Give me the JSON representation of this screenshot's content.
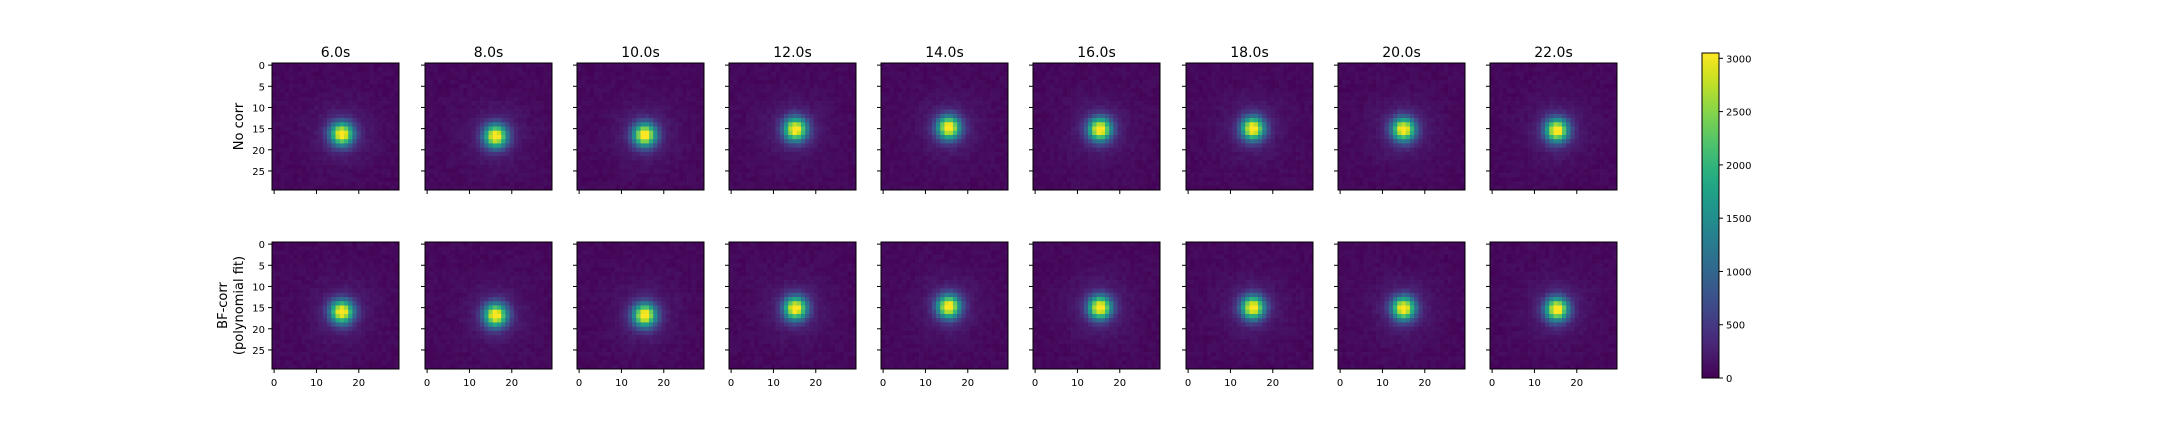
{
  "chart_data": {
    "type": "heatmap",
    "column_titles": [
      "6.0s",
      "8.0s",
      "10.0s",
      "12.0s",
      "14.0s",
      "16.0s",
      "18.0s",
      "20.0s",
      "22.0s"
    ],
    "row_labels": [
      [
        "No corr"
      ],
      [
        "BF-corr",
        "(polynomial fit)"
      ]
    ],
    "image_size": 30,
    "x_ticks": [
      0,
      10,
      20
    ],
    "y_ticks": [
      0,
      5,
      10,
      15,
      20,
      25
    ],
    "colorbar": {
      "min": 0,
      "max": 3050,
      "ticks": [
        0,
        500,
        1000,
        1500,
        2000,
        2500,
        3000
      ],
      "colormap": "viridis"
    },
    "panels": [
      [
        {
          "cx": 16.0,
          "cy": 16.3,
          "peak": 3050,
          "background": 60
        },
        {
          "cx": 16.2,
          "cy": 16.8,
          "peak": 3050,
          "background": 60
        },
        {
          "cx": 15.5,
          "cy": 16.5,
          "peak": 3050,
          "background": 60
        },
        {
          "cx": 15.2,
          "cy": 15.2,
          "peak": 3050,
          "background": 60
        },
        {
          "cx": 15.5,
          "cy": 14.8,
          "peak": 3050,
          "background": 60
        },
        {
          "cx": 15.3,
          "cy": 15.2,
          "peak": 3050,
          "background": 60
        },
        {
          "cx": 15.3,
          "cy": 15.0,
          "peak": 3050,
          "background": 60
        },
        {
          "cx": 15.0,
          "cy": 15.2,
          "peak": 3050,
          "background": 60
        },
        {
          "cx": 15.3,
          "cy": 15.4,
          "peak": 3050,
          "background": 60
        }
      ],
      [
        {
          "cx": 16.0,
          "cy": 16.0,
          "peak": 3050,
          "background": 60
        },
        {
          "cx": 16.2,
          "cy": 16.8,
          "peak": 3050,
          "background": 60
        },
        {
          "cx": 15.5,
          "cy": 16.8,
          "peak": 3050,
          "background": 60
        },
        {
          "cx": 15.2,
          "cy": 15.2,
          "peak": 3050,
          "background": 60
        },
        {
          "cx": 15.5,
          "cy": 14.8,
          "peak": 3050,
          "background": 60
        },
        {
          "cx": 15.3,
          "cy": 15.0,
          "peak": 3050,
          "background": 60
        },
        {
          "cx": 15.3,
          "cy": 15.0,
          "peak": 3050,
          "background": 60
        },
        {
          "cx": 15.0,
          "cy": 15.2,
          "peak": 3050,
          "background": 60
        },
        {
          "cx": 15.3,
          "cy": 15.4,
          "peak": 3050,
          "background": 60
        }
      ]
    ]
  }
}
